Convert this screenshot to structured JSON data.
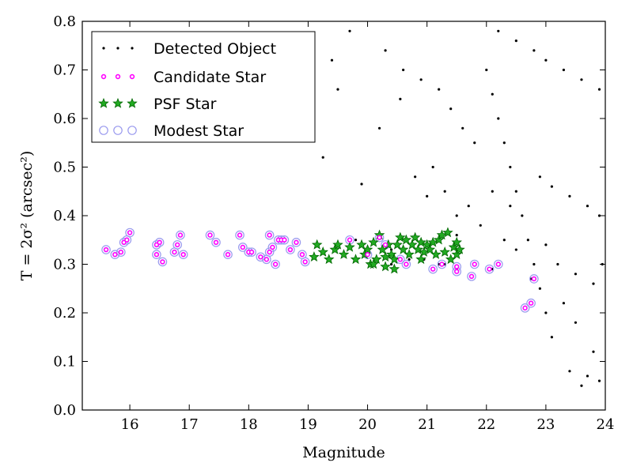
{
  "chart_data": {
    "type": "scatter",
    "xlabel": "Magnitude",
    "ylabel": "T = 2σ² (arcsec²)",
    "xlim": [
      15.2,
      24.0
    ],
    "ylim": [
      0.0,
      0.8
    ],
    "x_ticks": [
      16,
      17,
      18,
      19,
      20,
      21,
      22,
      23,
      24
    ],
    "y_ticks": [
      0.0,
      0.1,
      0.2,
      0.3,
      0.4,
      0.5,
      0.6,
      0.7,
      0.8
    ],
    "x_tick_labels": [
      "16",
      "17",
      "18",
      "19",
      "20",
      "21",
      "22",
      "23",
      "24"
    ],
    "y_tick_labels": [
      "0.0",
      "0.1",
      "0.2",
      "0.3",
      "0.4",
      "0.5",
      "0.6",
      "0.7",
      "0.8"
    ],
    "legend_placement": "top-left",
    "legend": [
      "Detected Object",
      "Candidate Star",
      "PSF Star",
      "Modest Star"
    ],
    "colors": {
      "detected": "#000000",
      "candidate": "#ff00ff",
      "psf_fill": "#22aa22",
      "psf_edge": "#006600",
      "modest": "#9999ee"
    },
    "series": [
      {
        "name": "Detected Object",
        "marker": "dot",
        "points": [
          [
            19.25,
            0.52
          ],
          [
            19.9,
            0.465
          ],
          [
            20.2,
            0.58
          ],
          [
            20.55,
            0.64
          ],
          [
            19.5,
            0.66
          ],
          [
            19.7,
            0.78
          ],
          [
            19.4,
            0.72
          ],
          [
            19.8,
            0.35
          ],
          [
            20.1,
            0.345
          ],
          [
            20.4,
            0.33
          ],
          [
            20.7,
            0.31
          ],
          [
            21.0,
            0.34
          ],
          [
            21.3,
            0.3
          ],
          [
            21.5,
            0.36
          ],
          [
            20.3,
            0.74
          ],
          [
            20.6,
            0.7
          ],
          [
            20.9,
            0.68
          ],
          [
            21.2,
            0.66
          ],
          [
            21.4,
            0.62
          ],
          [
            21.6,
            0.58
          ],
          [
            21.8,
            0.55
          ],
          [
            20.8,
            0.48
          ],
          [
            21.0,
            0.44
          ],
          [
            21.1,
            0.5
          ],
          [
            21.3,
            0.45
          ],
          [
            21.5,
            0.4
          ],
          [
            21.7,
            0.42
          ],
          [
            21.9,
            0.38
          ],
          [
            22.0,
            0.7
          ],
          [
            22.1,
            0.65
          ],
          [
            22.2,
            0.6
          ],
          [
            22.3,
            0.55
          ],
          [
            22.4,
            0.5
          ],
          [
            22.5,
            0.45
          ],
          [
            22.6,
            0.4
          ],
          [
            22.7,
            0.35
          ],
          [
            22.8,
            0.3
          ],
          [
            22.9,
            0.25
          ],
          [
            23.0,
            0.2
          ],
          [
            23.1,
            0.15
          ],
          [
            23.4,
            0.08
          ],
          [
            23.6,
            0.05
          ],
          [
            23.7,
            0.07
          ],
          [
            23.9,
            0.06
          ],
          [
            23.8,
            0.12
          ],
          [
            23.5,
            0.18
          ],
          [
            23.3,
            0.22
          ],
          [
            22.75,
            0.22
          ],
          [
            22.75,
            0.27
          ],
          [
            21.75,
            0.275
          ],
          [
            22.1,
            0.29
          ],
          [
            21.5,
            0.29
          ],
          [
            21.2,
            0.3
          ],
          [
            20.95,
            0.31
          ],
          [
            20.4,
            0.3
          ],
          [
            22.2,
            0.78
          ],
          [
            22.5,
            0.76
          ],
          [
            22.8,
            0.74
          ],
          [
            23.0,
            0.72
          ],
          [
            23.3,
            0.7
          ],
          [
            23.6,
            0.68
          ],
          [
            23.9,
            0.66
          ],
          [
            22.3,
            0.35
          ],
          [
            22.5,
            0.33
          ],
          [
            23.0,
            0.34
          ],
          [
            23.2,
            0.3
          ],
          [
            23.5,
            0.28
          ],
          [
            23.8,
            0.26
          ],
          [
            23.95,
            0.3
          ],
          [
            22.1,
            0.45
          ],
          [
            22.4,
            0.42
          ],
          [
            22.9,
            0.48
          ],
          [
            23.1,
            0.46
          ],
          [
            23.4,
            0.44
          ],
          [
            23.7,
            0.42
          ],
          [
            23.9,
            0.4
          ]
        ]
      },
      {
        "name": "Candidate Star",
        "marker": "small-circle",
        "points": [
          [
            15.6,
            0.33
          ],
          [
            15.75,
            0.32
          ],
          [
            15.85,
            0.325
          ],
          [
            15.9,
            0.345
          ],
          [
            15.95,
            0.35
          ],
          [
            16.0,
            0.365
          ],
          [
            16.45,
            0.34
          ],
          [
            16.5,
            0.345
          ],
          [
            16.45,
            0.32
          ],
          [
            16.55,
            0.305
          ],
          [
            16.75,
            0.325
          ],
          [
            16.8,
            0.34
          ],
          [
            16.85,
            0.36
          ],
          [
            16.9,
            0.32
          ],
          [
            17.35,
            0.36
          ],
          [
            17.45,
            0.345
          ],
          [
            17.65,
            0.32
          ],
          [
            17.85,
            0.36
          ],
          [
            17.9,
            0.335
          ],
          [
            18.0,
            0.325
          ],
          [
            18.05,
            0.325
          ],
          [
            18.2,
            0.315
          ],
          [
            18.3,
            0.31
          ],
          [
            18.35,
            0.325
          ],
          [
            18.35,
            0.36
          ],
          [
            18.4,
            0.335
          ],
          [
            18.45,
            0.3
          ],
          [
            18.5,
            0.35
          ],
          [
            18.55,
            0.35
          ],
          [
            18.6,
            0.35
          ],
          [
            18.7,
            0.33
          ],
          [
            18.8,
            0.345
          ],
          [
            18.9,
            0.32
          ],
          [
            18.95,
            0.305
          ],
          [
            19.7,
            0.35
          ],
          [
            20.0,
            0.32
          ],
          [
            20.2,
            0.355
          ],
          [
            20.3,
            0.34
          ],
          [
            20.55,
            0.31
          ],
          [
            20.65,
            0.3
          ],
          [
            21.1,
            0.29
          ],
          [
            21.25,
            0.3
          ],
          [
            21.5,
            0.285
          ],
          [
            21.5,
            0.295
          ],
          [
            21.75,
            0.275
          ],
          [
            21.8,
            0.3
          ],
          [
            22.05,
            0.29
          ],
          [
            22.2,
            0.3
          ],
          [
            22.65,
            0.21
          ],
          [
            22.75,
            0.22
          ],
          [
            22.8,
            0.27
          ]
        ]
      },
      {
        "name": "PSF Star",
        "marker": "star",
        "points": [
          [
            19.1,
            0.315
          ],
          [
            19.15,
            0.34
          ],
          [
            19.25,
            0.325
          ],
          [
            19.35,
            0.31
          ],
          [
            19.45,
            0.33
          ],
          [
            19.5,
            0.34
          ],
          [
            19.6,
            0.32
          ],
          [
            19.7,
            0.335
          ],
          [
            19.8,
            0.31
          ],
          [
            19.9,
            0.34
          ],
          [
            19.95,
            0.32
          ],
          [
            20.0,
            0.33
          ],
          [
            20.05,
            0.3
          ],
          [
            20.1,
            0.345
          ],
          [
            20.15,
            0.31
          ],
          [
            20.2,
            0.36
          ],
          [
            20.25,
            0.33
          ],
          [
            20.3,
            0.295
          ],
          [
            20.35,
            0.34
          ],
          [
            20.4,
            0.32
          ],
          [
            20.45,
            0.31
          ],
          [
            20.5,
            0.34
          ],
          [
            20.55,
            0.355
          ],
          [
            20.6,
            0.33
          ],
          [
            20.65,
            0.35
          ],
          [
            20.7,
            0.32
          ],
          [
            20.75,
            0.34
          ],
          [
            20.8,
            0.355
          ],
          [
            20.85,
            0.33
          ],
          [
            20.9,
            0.345
          ],
          [
            20.95,
            0.325
          ],
          [
            21.0,
            0.34
          ],
          [
            21.05,
            0.33
          ],
          [
            21.1,
            0.345
          ],
          [
            21.15,
            0.32
          ],
          [
            21.2,
            0.35
          ],
          [
            21.25,
            0.36
          ],
          [
            21.3,
            0.325
          ],
          [
            21.35,
            0.365
          ],
          [
            21.4,
            0.31
          ],
          [
            21.45,
            0.335
          ],
          [
            21.5,
            0.32
          ],
          [
            21.55,
            0.33
          ],
          [
            21.5,
            0.345
          ],
          [
            20.1,
            0.3
          ],
          [
            20.3,
            0.315
          ],
          [
            20.45,
            0.29
          ],
          [
            20.9,
            0.31
          ]
        ]
      },
      {
        "name": "Modest Star",
        "marker": "open-circle",
        "points": [
          [
            15.6,
            0.33
          ],
          [
            15.75,
            0.32
          ],
          [
            15.85,
            0.325
          ],
          [
            15.9,
            0.345
          ],
          [
            15.95,
            0.35
          ],
          [
            16.0,
            0.365
          ],
          [
            16.45,
            0.34
          ],
          [
            16.5,
            0.345
          ],
          [
            16.45,
            0.32
          ],
          [
            16.55,
            0.305
          ],
          [
            16.75,
            0.325
          ],
          [
            16.8,
            0.34
          ],
          [
            16.85,
            0.36
          ],
          [
            16.9,
            0.32
          ],
          [
            17.35,
            0.36
          ],
          [
            17.45,
            0.345
          ],
          [
            17.65,
            0.32
          ],
          [
            17.85,
            0.36
          ],
          [
            17.9,
            0.335
          ],
          [
            18.0,
            0.325
          ],
          [
            18.05,
            0.325
          ],
          [
            18.2,
            0.315
          ],
          [
            18.3,
            0.31
          ],
          [
            18.35,
            0.325
          ],
          [
            18.35,
            0.36
          ],
          [
            18.4,
            0.335
          ],
          [
            18.45,
            0.3
          ],
          [
            18.5,
            0.35
          ],
          [
            18.55,
            0.35
          ],
          [
            18.6,
            0.35
          ],
          [
            18.7,
            0.33
          ],
          [
            18.8,
            0.345
          ],
          [
            18.9,
            0.32
          ],
          [
            18.95,
            0.305
          ],
          [
            19.7,
            0.35
          ],
          [
            20.0,
            0.32
          ],
          [
            20.2,
            0.355
          ],
          [
            20.3,
            0.34
          ],
          [
            20.55,
            0.31
          ],
          [
            20.65,
            0.3
          ],
          [
            21.1,
            0.29
          ],
          [
            21.25,
            0.3
          ],
          [
            21.5,
            0.285
          ],
          [
            21.5,
            0.295
          ],
          [
            21.75,
            0.275
          ],
          [
            21.8,
            0.3
          ],
          [
            22.05,
            0.29
          ],
          [
            22.2,
            0.3
          ],
          [
            22.65,
            0.21
          ],
          [
            22.75,
            0.22
          ],
          [
            22.8,
            0.27
          ]
        ]
      }
    ]
  }
}
